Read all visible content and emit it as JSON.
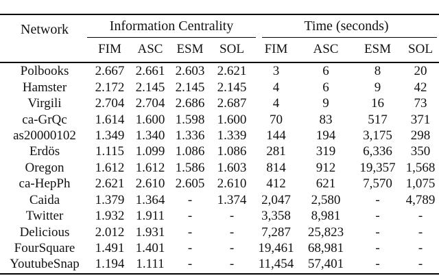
{
  "table": {
    "network_header": "Network",
    "group_ic": "Information Centrality",
    "group_time": "Time (seconds)",
    "subheaders": [
      "FIM",
      "ASC",
      "ESM",
      "SOL",
      "FIM",
      "ASC",
      "ESM",
      "SOL"
    ],
    "rows": [
      {
        "c": [
          "Polbooks",
          "2.667",
          "2.661",
          "2.603",
          "2.621",
          "3",
          "6",
          "8",
          "20"
        ]
      },
      {
        "c": [
          "Hamster",
          "2.172",
          "2.145",
          "2.145",
          "2.145",
          "4",
          "6",
          "9",
          "42"
        ]
      },
      {
        "c": [
          "Virgili",
          "2.704",
          "2.704",
          "2.686",
          "2.687",
          "4",
          "9",
          "16",
          "73"
        ]
      },
      {
        "c": [
          "ca-GrQc",
          "1.614",
          "1.600",
          "1.598",
          "1.600",
          "70",
          "83",
          "517",
          "371"
        ]
      },
      {
        "c": [
          "as20000102",
          "1.349",
          "1.340",
          "1.336",
          "1.339",
          "144",
          "194",
          "3,175",
          "298"
        ]
      },
      {
        "c": [
          "Erdös",
          "1.115",
          "1.099",
          "1.086",
          "1.086",
          "281",
          "319",
          "6,336",
          "350"
        ]
      },
      {
        "c": [
          "Oregon",
          "1.612",
          "1.612",
          "1.586",
          "1.603",
          "814",
          "912",
          "19,357",
          "1,568"
        ]
      },
      {
        "c": [
          "ca-HepPh",
          "2.621",
          "2.610",
          "2.605",
          "2.610",
          "412",
          "621",
          "7,570",
          "1,075"
        ]
      },
      {
        "c": [
          "Caida",
          "1.379",
          "1.364",
          "-",
          "1.374",
          "2,047",
          "2,580",
          "-",
          "4,789"
        ]
      },
      {
        "c": [
          "Twitter",
          "1.932",
          "1.911",
          "-",
          "-",
          "3,358",
          "8,981",
          "-",
          "-"
        ]
      },
      {
        "c": [
          "Delicious",
          "2.012",
          "1.931",
          "-",
          "-",
          "7,287",
          "25,823",
          "-",
          "-"
        ]
      },
      {
        "c": [
          "FourSquare",
          "1.491",
          "1.401",
          "-",
          "-",
          "19,461",
          "68,981",
          "-",
          "-"
        ]
      },
      {
        "c": [
          "YoutubeSnap",
          "1.194",
          "1.111",
          "-",
          "-",
          "11,454",
          "57,401",
          "-",
          "-"
        ]
      }
    ],
    "colors": {
      "text": "#111111",
      "rule": "#000000",
      "background": "#ffffff"
    }
  }
}
